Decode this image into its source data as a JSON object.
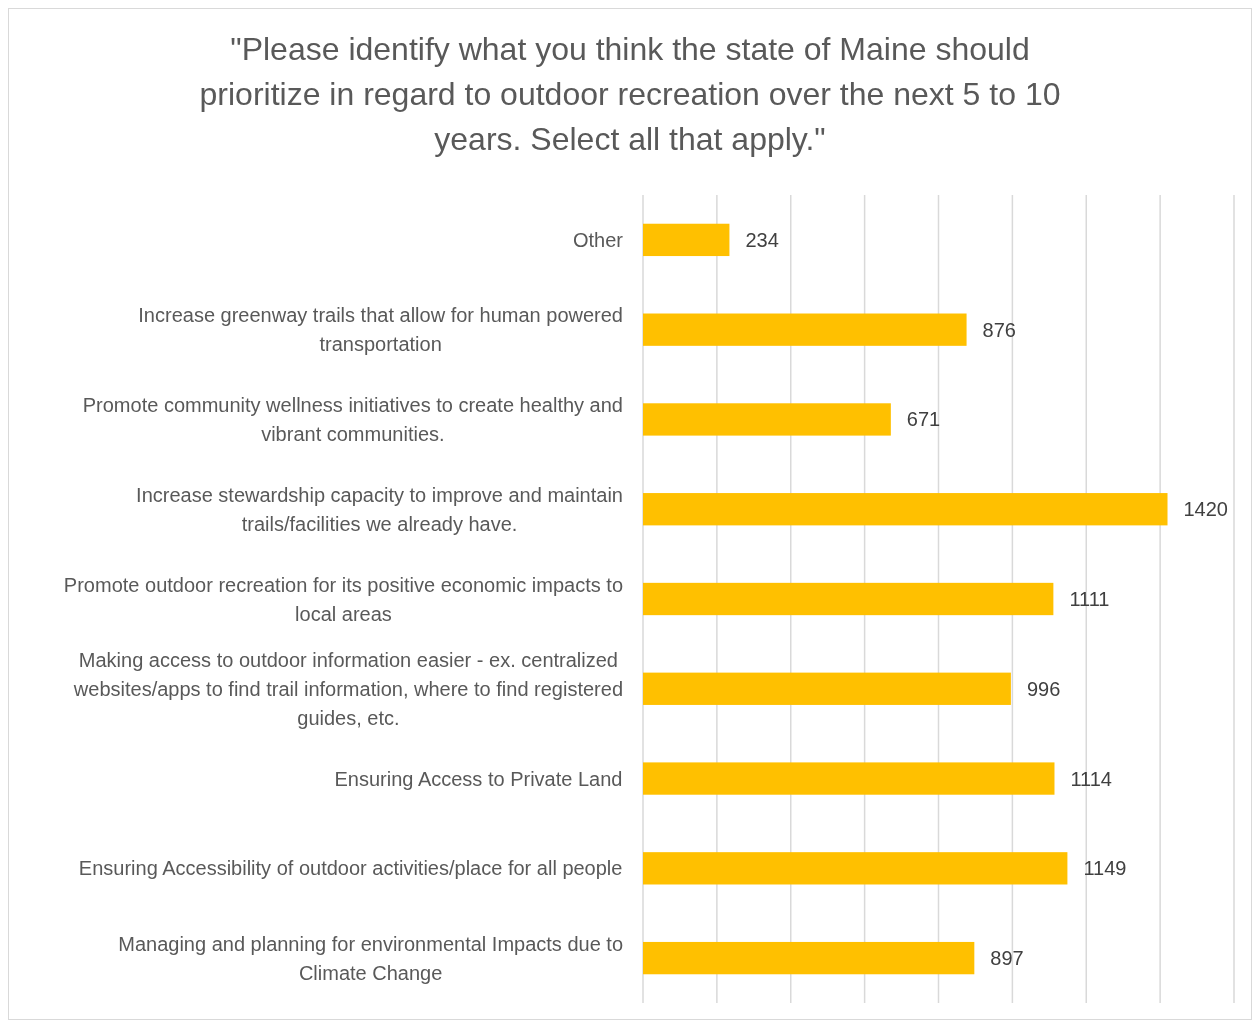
{
  "chart_data": {
    "type": "bar",
    "orientation": "horizontal",
    "title": "\"Please identify what you think the state of Maine should prioritize in regard to outdoor recreation over the next 5 to 10 years. Select all that apply.\"",
    "categories": [
      "Other",
      "Increase greenway trails that allow for human powered transportation",
      "Promote community wellness initiatives to create healthy and vibrant communities.",
      "Increase stewardship capacity to improve and maintain trails/facilities we already have.",
      "Promote outdoor recreation for its positive economic impacts to local areas",
      "Making access to outdoor information easier - ex. centralized websites/apps to find trail information, where to find registered guides, etc.",
      "Ensuring Access to Private Land",
      "Ensuring Accessibility of outdoor activities/place for all people",
      "Managing and planning for environmental Impacts due to Climate Change"
    ],
    "values": [
      234,
      876,
      671,
      1420,
      1111,
      996,
      1114,
      1149,
      897
    ],
    "color": "#ffc000",
    "xlim": [
      0,
      1600
    ],
    "xticks": [
      {
        "value": 0,
        "label": null
      },
      {
        "value": 200,
        "label": null
      },
      {
        "value": 400,
        "label": null
      },
      {
        "value": 600,
        "label": null
      },
      {
        "value": 800,
        "label": null
      },
      {
        "value": 1000,
        "label": null
      },
      {
        "value": 1200,
        "label": null
      },
      {
        "value": 1400,
        "label": null
      },
      {
        "value": 1600,
        "label": null
      }
    ],
    "tick_labels": "y",
    "grid": "x",
    "data_labels": true
  }
}
